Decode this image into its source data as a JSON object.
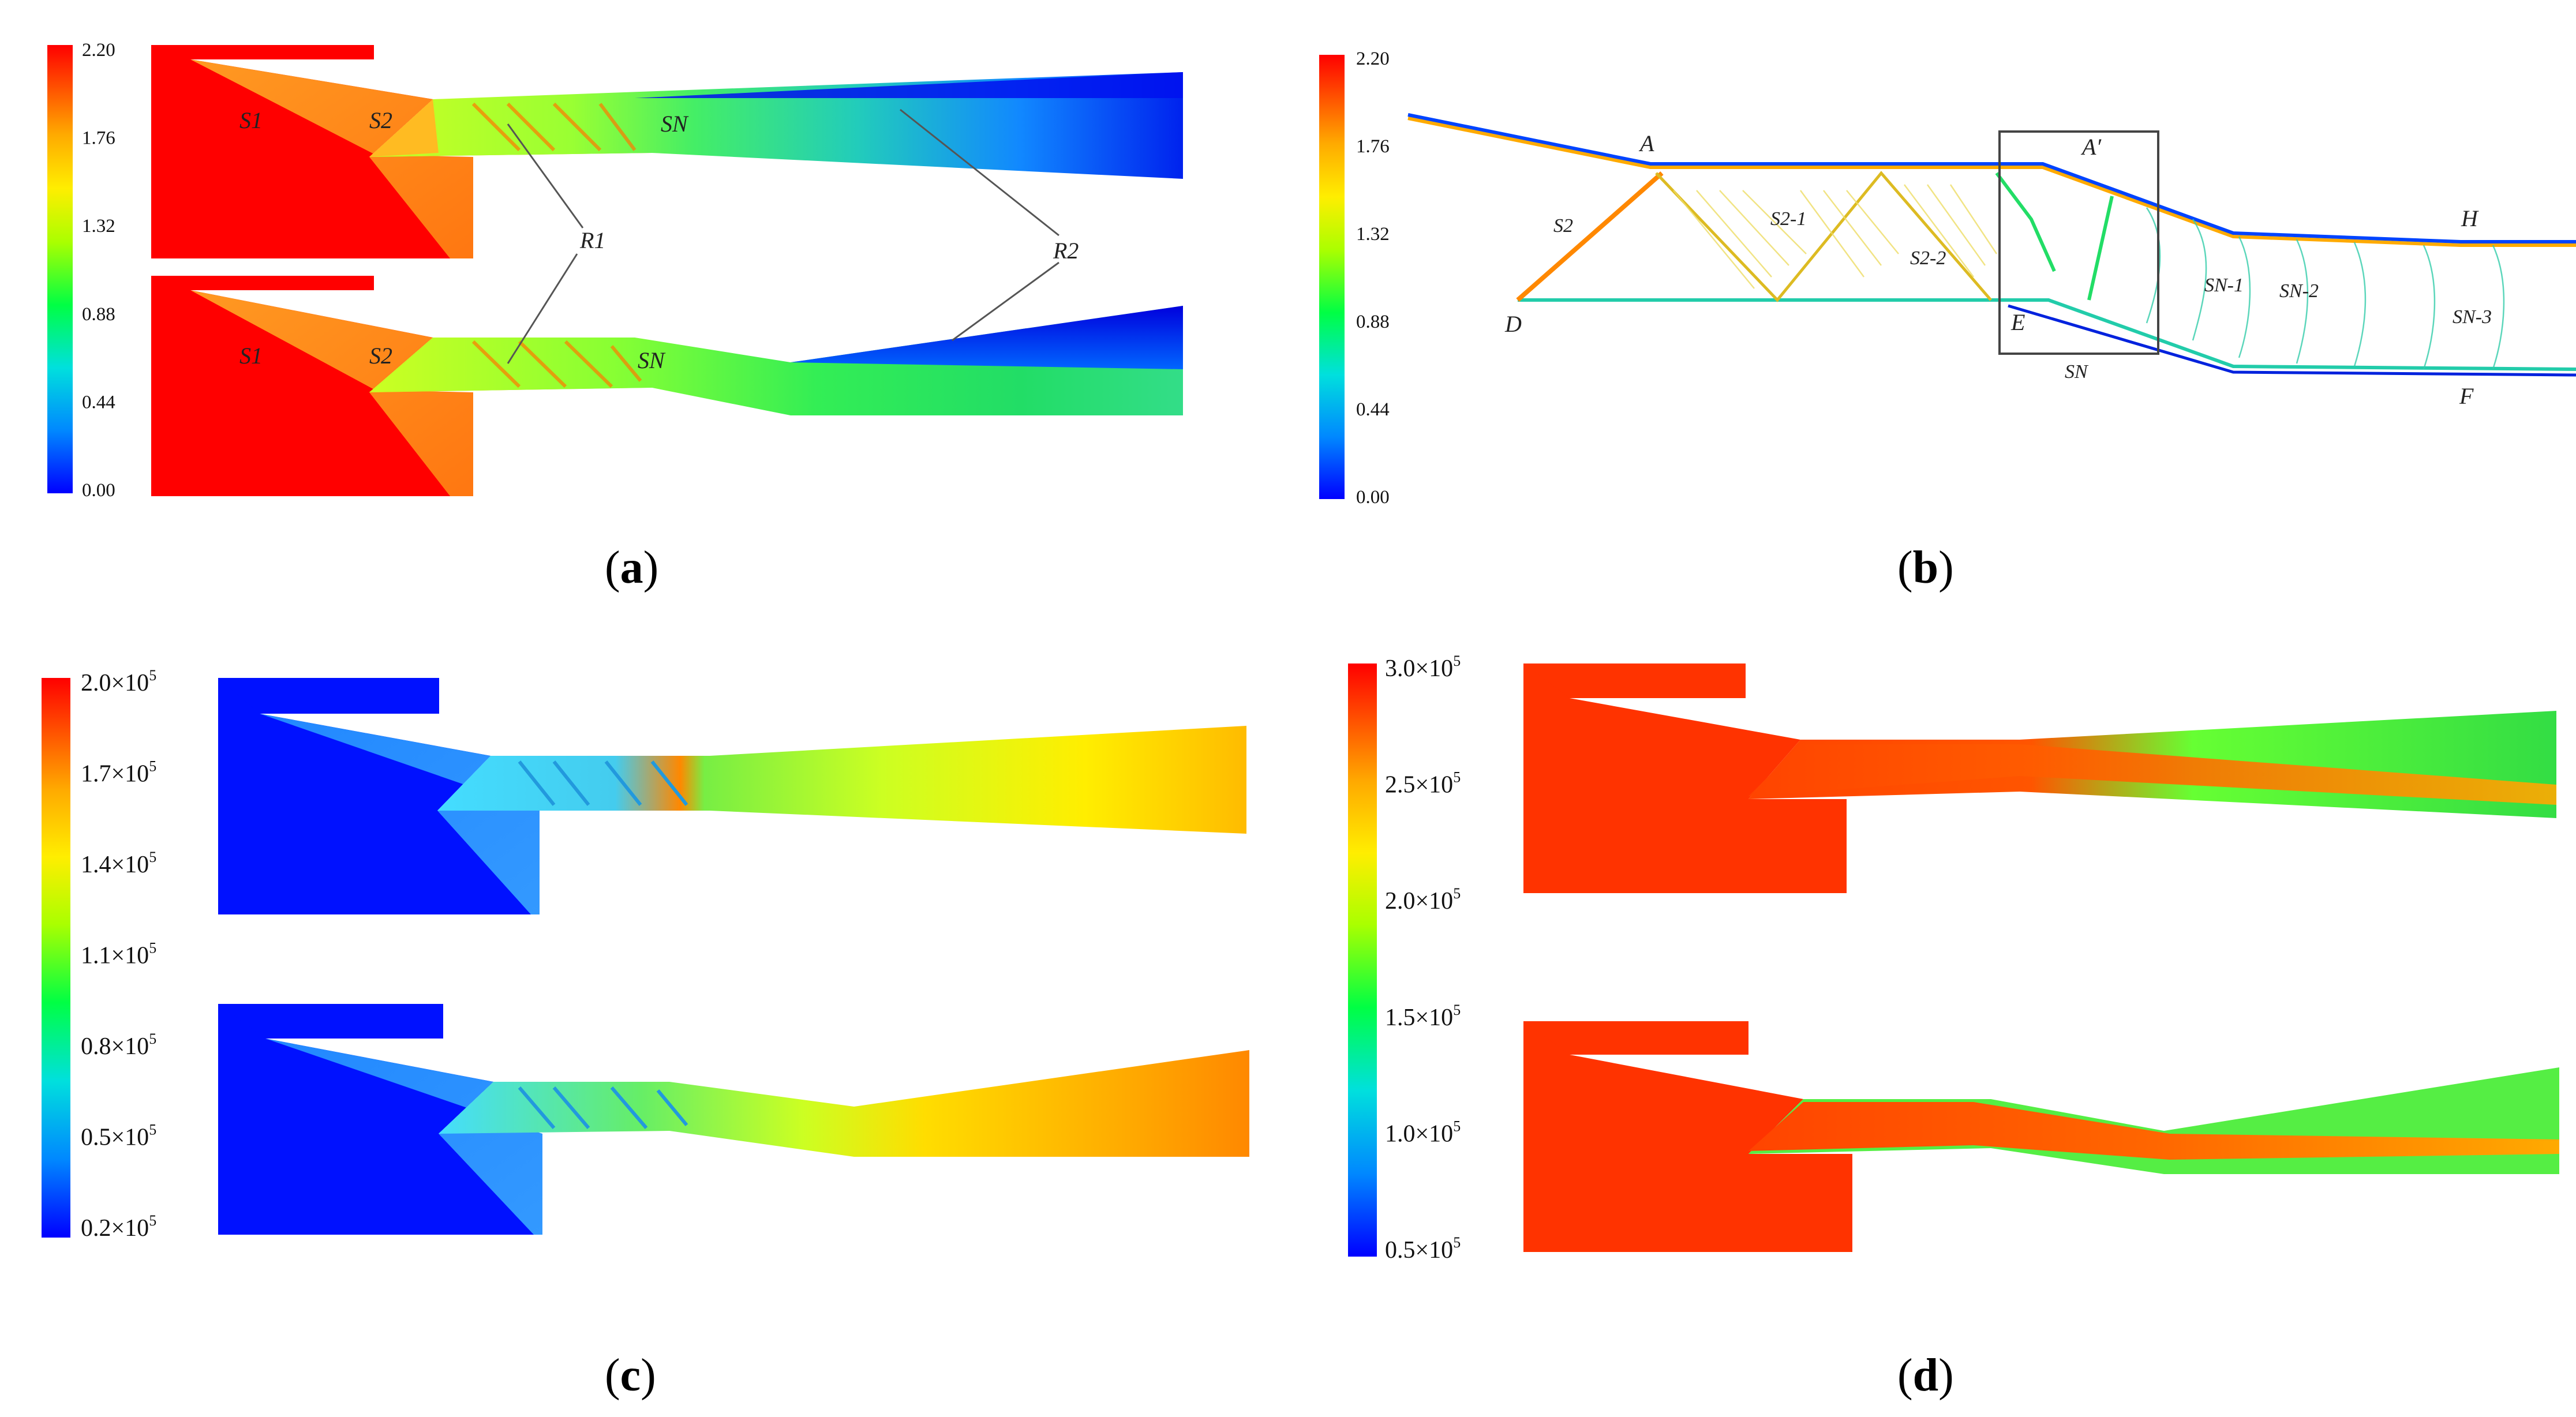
{
  "colormap": {
    "stops": [
      "#0000ff",
      "#00aaff",
      "#00e5cc",
      "#00ff33",
      "#ccff00",
      "#ffee00",
      "#ffaa00",
      "#ff5500",
      "#ff0000"
    ]
  },
  "panels": {
    "a": {
      "label": "a",
      "colorbar_ticks": [
        "2.20",
        "1.76",
        "1.32",
        "0.88",
        "0.44",
        "0.00"
      ],
      "annotations": {
        "s1_top": "S1",
        "s2_top": "S2",
        "sn_top": "SN",
        "s1_bot": "S1",
        "s2_bot": "S2",
        "sn_bot": "SN",
        "r1": "R1",
        "r2": "R2"
      }
    },
    "b": {
      "label": "b",
      "colorbar_ticks": [
        "2.20",
        "1.76",
        "1.32",
        "0.88",
        "0.44",
        "0.00"
      ],
      "annotations": {
        "A": "A",
        "A_prime": "A′",
        "D": "D",
        "E": "E",
        "H": "H",
        "F": "F",
        "S2": "S2",
        "S2_1": "S2-1",
        "S2_2": "S2-2",
        "SN": "SN",
        "SN_1": "SN-1",
        "SN_2": "SN-2",
        "SN_3": "SN-3"
      }
    },
    "c": {
      "label": "c",
      "colorbar_ticks": [
        "2.0×10",
        "1.7×10",
        "1.4×10",
        "1.1×10",
        "0.8×10",
        "0.5×10",
        "0.2×10"
      ],
      "exponent": "5"
    },
    "d": {
      "label": "d",
      "colorbar_ticks": [
        "3.0×10",
        "2.5×10",
        "2.0×10",
        "1.5×10",
        "1.0×10",
        "0.5×10"
      ],
      "exponent": "5"
    }
  }
}
